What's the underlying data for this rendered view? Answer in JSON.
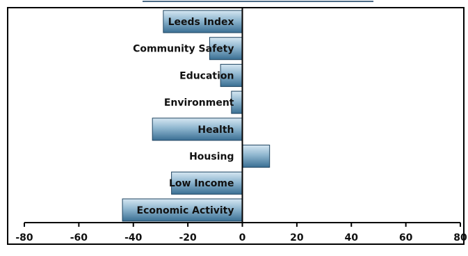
{
  "chart_data": {
    "type": "bar",
    "orientation": "horizontal",
    "categories": [
      "Leeds Index",
      "Community Safety",
      "Education",
      "Environment",
      "Health",
      "Housing",
      "Low Income",
      "Economic Activity"
    ],
    "values": [
      -29,
      -12,
      -8,
      -4,
      -33,
      10,
      -26,
      -44
    ],
    "title": "",
    "xlabel": "",
    "ylabel": "",
    "xlim": [
      -80,
      80
    ],
    "xticks": [
      -80,
      -60,
      -40,
      -20,
      0,
      20,
      40,
      60,
      80
    ],
    "tick_labels": [
      "-80",
      "-60",
      "-40",
      "-20",
      "0",
      "20",
      "40",
      "60",
      "80"
    ],
    "grid": false,
    "legend": "none",
    "colors": {
      "bar_light": "#d6e7f2",
      "bar_mid": "#8fb6cf",
      "bar_dark": "#3a6f93",
      "bar_stroke": "#1f4460",
      "axis": "#000000",
      "frame": "#000000",
      "background": "#ffffff"
    }
  }
}
